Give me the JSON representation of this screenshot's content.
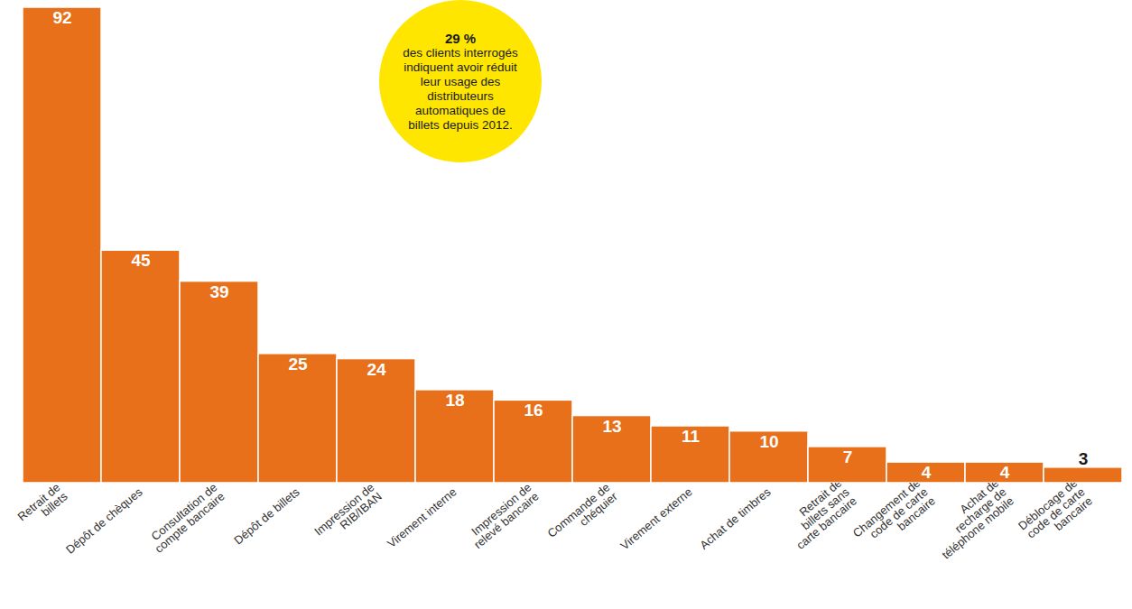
{
  "chart_data": {
    "type": "bar",
    "categories": [
      "Retrait de billets",
      "Dépôt de chèques",
      "Consultation de compte bancaire",
      "Dépôt de billets",
      "Impression de RIB/IBAN",
      "Virement interne",
      "Impression de relevé bancaire",
      "Commande de chéquier",
      "Virement externe",
      "Achat de timbres",
      "Retrait de billets sans carte bancaire",
      "Changement de code de carte bancaire",
      "Achat de recharge de téléphone mobile",
      "Déblocage de code de carte bancaire"
    ],
    "values": [
      92,
      45,
      39,
      25,
      24,
      18,
      16,
      13,
      11,
      10,
      7,
      4,
      4,
      3
    ],
    "color": "#e8701a",
    "data_labels": true,
    "tick_labels": "x",
    "annotations": [
      "29 %",
      "des clients interrogés indiquent avoir réduit leur usage des distributeurs automatiques de billets depuis 2012."
    ]
  }
}
